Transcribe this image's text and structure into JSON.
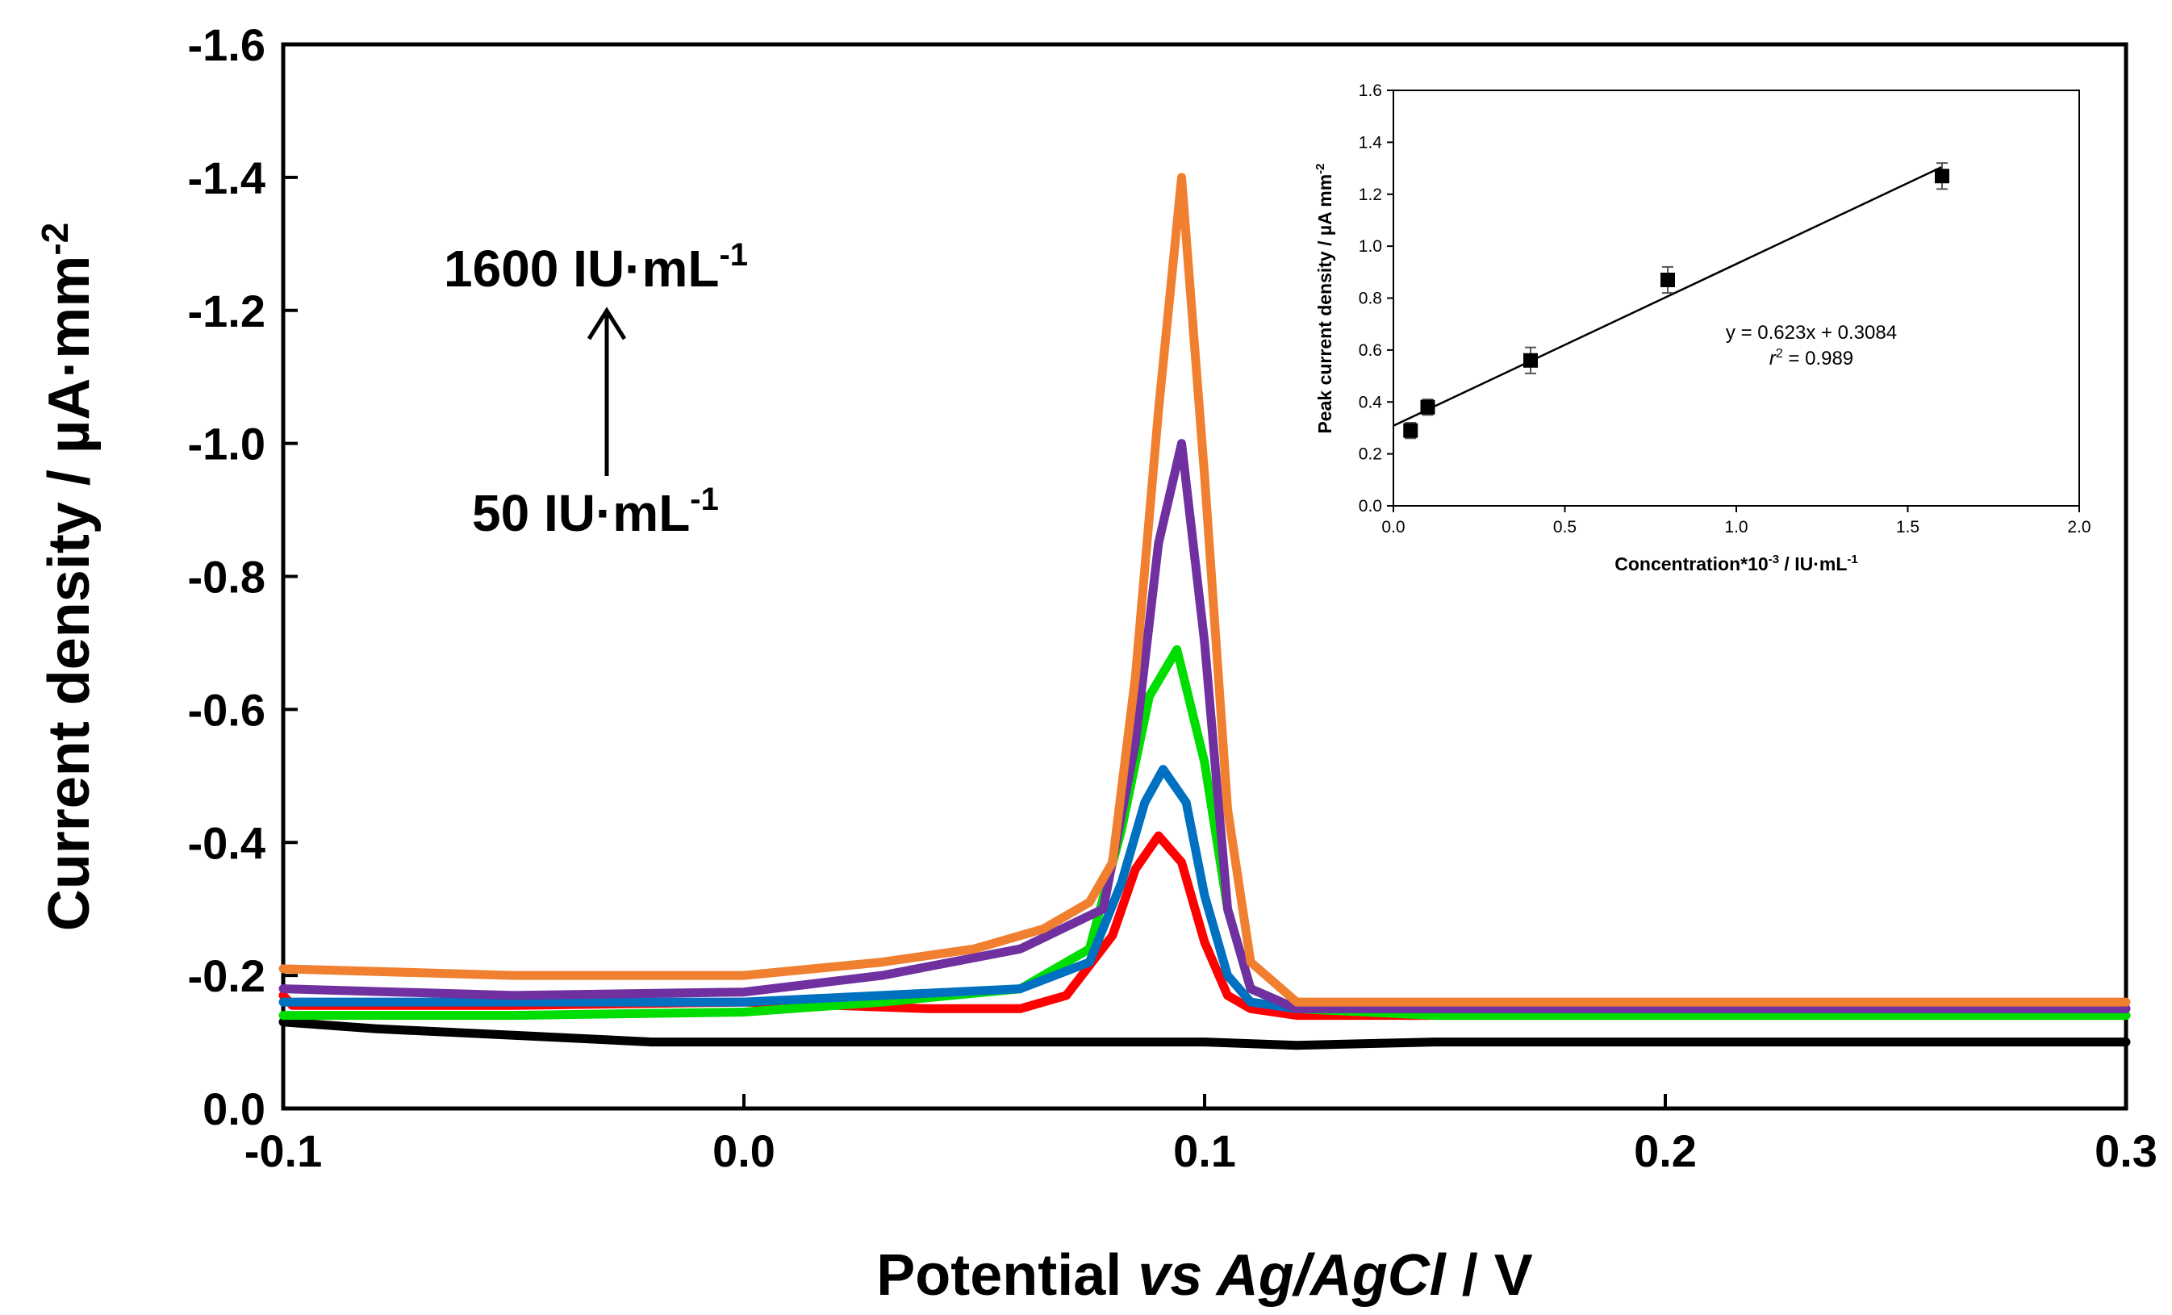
{
  "chart_data": [
    {
      "type": "line",
      "xlabel_parts": [
        "Potential ",
        "vs Ag/AgCl",
        " / V"
      ],
      "ylabel_parts": [
        "Current density / µA·mm",
        "-2"
      ],
      "xlim": [
        -0.1,
        0.3
      ],
      "ylim": [
        0.0,
        -1.6
      ],
      "x_ticks": [
        "-0.1",
        "0.0",
        "0.1",
        "0.2",
        "0.3"
      ],
      "y_ticks": [
        "0.0",
        "-0.2",
        "-0.4",
        "-0.6",
        "-0.8",
        "-1.0",
        "-1.2",
        "-1.4",
        "-1.6"
      ],
      "grid": false,
      "annotations": {
        "top_label": [
          "1600 IU·mL",
          "-1"
        ],
        "bottom_label": [
          "50 IU·mL",
          "-1"
        ]
      },
      "series": [
        {
          "color": "#000000",
          "x": [
            -0.1,
            -0.08,
            -0.05,
            -0.02,
            0.0,
            0.05,
            0.08,
            0.1,
            0.12,
            0.15,
            0.2,
            0.25,
            0.3
          ],
          "y": [
            -0.13,
            -0.12,
            -0.11,
            -0.1,
            -0.1,
            -0.1,
            -0.1,
            -0.1,
            -0.095,
            -0.1,
            -0.1,
            -0.1,
            -0.1
          ]
        },
        {
          "color": "#ff0000",
          "x": [
            -0.1,
            -0.098,
            -0.09,
            -0.05,
            0.0,
            0.04,
            0.06,
            0.07,
            0.08,
            0.085,
            0.09,
            0.095,
            0.1,
            0.105,
            0.11,
            0.12,
            0.15,
            0.2,
            0.3
          ],
          "y": [
            -0.17,
            -0.155,
            -0.155,
            -0.155,
            -0.16,
            -0.15,
            -0.15,
            -0.17,
            -0.26,
            -0.36,
            -0.41,
            -0.37,
            -0.25,
            -0.17,
            -0.15,
            -0.14,
            -0.14,
            -0.14,
            -0.14
          ]
        },
        {
          "color": "#00dd00",
          "x": [
            -0.1,
            -0.05,
            0.0,
            0.03,
            0.06,
            0.075,
            0.082,
            0.088,
            0.094,
            0.1,
            0.105,
            0.11,
            0.12,
            0.15,
            0.2,
            0.3
          ],
          "y": [
            -0.14,
            -0.14,
            -0.145,
            -0.16,
            -0.18,
            -0.24,
            -0.42,
            -0.62,
            -0.69,
            -0.52,
            -0.3,
            -0.18,
            -0.15,
            -0.14,
            -0.14,
            -0.14
          ]
        },
        {
          "color": "#0070c0",
          "x": [
            -0.1,
            -0.05,
            0.0,
            0.03,
            0.06,
            0.075,
            0.082,
            0.087,
            0.091,
            0.096,
            0.1,
            0.105,
            0.11,
            0.12,
            0.15,
            0.2,
            0.3
          ],
          "y": [
            -0.16,
            -0.16,
            -0.16,
            -0.17,
            -0.18,
            -0.22,
            -0.34,
            -0.46,
            -0.51,
            -0.46,
            -0.32,
            -0.2,
            -0.16,
            -0.15,
            -0.15,
            -0.15,
            -0.15
          ]
        },
        {
          "color": "#7030a0",
          "x": [
            -0.1,
            -0.05,
            0.0,
            0.03,
            0.06,
            0.078,
            0.085,
            0.09,
            0.095,
            0.1,
            0.105,
            0.11,
            0.12,
            0.15,
            0.2,
            0.3
          ],
          "y": [
            -0.18,
            -0.17,
            -0.175,
            -0.2,
            -0.24,
            -0.3,
            -0.55,
            -0.85,
            -1.0,
            -0.7,
            -0.3,
            -0.18,
            -0.15,
            -0.15,
            -0.15,
            -0.15
          ]
        },
        {
          "color": "#f07f30",
          "x": [
            -0.1,
            -0.05,
            0.0,
            0.03,
            0.05,
            0.065,
            0.075,
            0.08,
            0.085,
            0.09,
            0.095,
            0.1,
            0.105,
            0.11,
            0.12,
            0.15,
            0.2,
            0.3
          ],
          "y": [
            -0.21,
            -0.2,
            -0.2,
            -0.22,
            -0.24,
            -0.27,
            -0.31,
            -0.37,
            -0.65,
            -1.05,
            -1.4,
            -0.95,
            -0.45,
            -0.22,
            -0.16,
            -0.16,
            -0.16,
            -0.16
          ]
        }
      ]
    },
    {
      "type": "scatter",
      "xlabel_parts": [
        "Concentration*10",
        "-3",
        " / IU·mL",
        "-1"
      ],
      "ylabel_parts": [
        "Peak current density / µA mm",
        "-2"
      ],
      "xlim": [
        0.0,
        2.0
      ],
      "ylim": [
        0.0,
        1.6
      ],
      "x_ticks": [
        "0.0",
        "0.5",
        "1.0",
        "1.5",
        "2.0"
      ],
      "y_ticks": [
        "0.0",
        "0.2",
        "0.4",
        "0.6",
        "0.8",
        "1.0",
        "1.2",
        "1.4",
        "1.6"
      ],
      "grid": false,
      "points": {
        "x": [
          0.05,
          0.1,
          0.4,
          0.8,
          1.6
        ],
        "y": [
          0.29,
          0.38,
          0.56,
          0.87,
          1.27
        ],
        "err": [
          0.03,
          0.03,
          0.05,
          0.05,
          0.05
        ]
      },
      "fit": {
        "slope": 0.623,
        "intercept": 0.3084,
        "x_range": [
          0.0,
          1.6
        ]
      },
      "equation": "y = 0.623x + 0.3084",
      "r2_parts": [
        "r",
        "2",
        " = 0.989"
      ]
    }
  ]
}
